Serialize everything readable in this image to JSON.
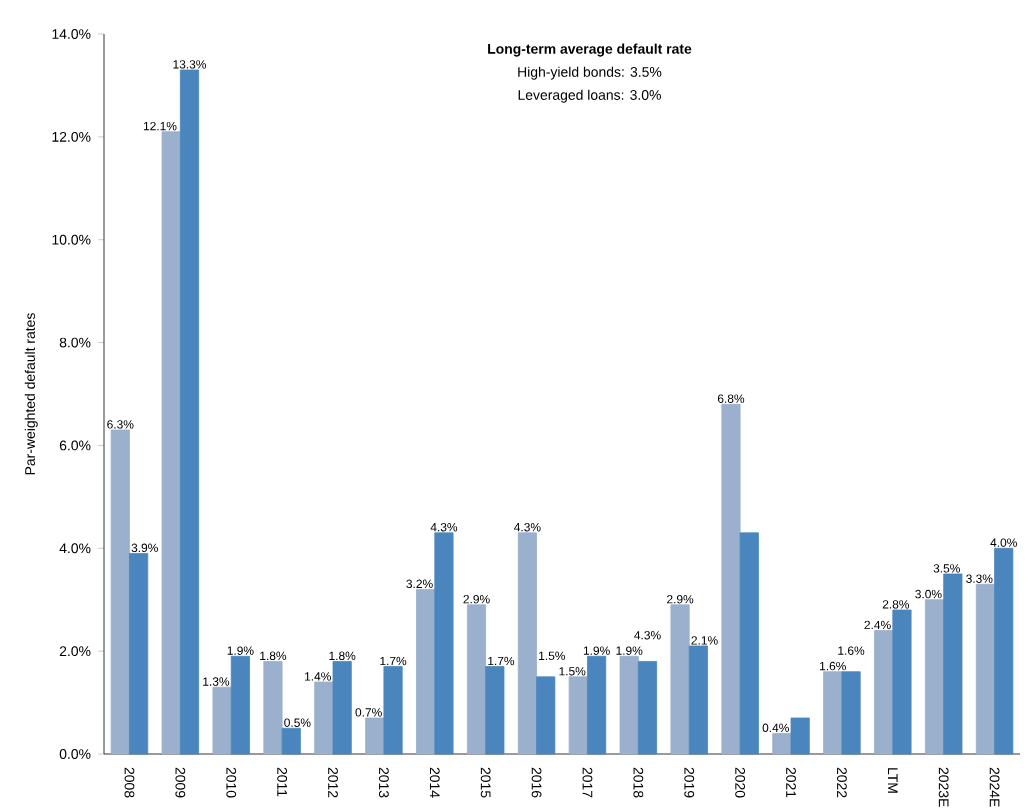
{
  "chart_data": {
    "type": "bar",
    "ylabel": "Par-weighted default rates",
    "categories": [
      "2008",
      "2009",
      "2010",
      "2011",
      "2012",
      "2013",
      "2014",
      "2015",
      "2016",
      "2017",
      "2018",
      "2019",
      "2020",
      "2021",
      "2022",
      "LTM",
      "2023E",
      "2024E"
    ],
    "series": [
      {
        "color": "#9bb0cc",
        "values": [
          6.3,
          12.1,
          1.3,
          1.8,
          1.4,
          0.7,
          3.2,
          2.9,
          4.3,
          1.5,
          1.9,
          2.9,
          6.8,
          0.4,
          1.6,
          2.4,
          3.0,
          3.3
        ],
        "value_labels": [
          "6.3%",
          "12.1%",
          "1.3%",
          "1.8%",
          "1.4%",
          "0.7%",
          "3.2%",
          "2.9%",
          "4.3%",
          "1.5%",
          "1.9%",
          "2.9%",
          "6.8%",
          "0.4%",
          "1.6%",
          "2.4%",
          "3.0%",
          "3.3%"
        ]
      },
      {
        "color": "#4a86bd",
        "values": [
          3.9,
          13.3,
          1.9,
          0.5,
          1.8,
          1.7,
          4.3,
          1.7,
          1.5,
          1.9,
          1.8,
          2.1,
          4.3,
          0.7,
          1.6,
          2.8,
          3.5,
          4.0
        ],
        "value_labels": [
          "3.9%",
          "13.3%",
          "1.9%",
          "0.5%",
          "1.8%",
          "1.7%",
          "4.3%",
          "1.7%",
          "1.5%",
          "1.9%",
          null,
          "2.1%",
          null,
          null,
          "1.6%",
          "2.8%",
          "3.5%",
          "4.0%"
        ]
      }
    ],
    "ylim": [
      0,
      14
    ],
    "yticks": [
      {
        "value": 0,
        "label": "0.0%"
      },
      {
        "value": 2,
        "label": "2.0%"
      },
      {
        "value": 4,
        "label": "4.0%"
      },
      {
        "value": 6,
        "label": "6.0%"
      },
      {
        "value": 8,
        "label": "8.0%"
      },
      {
        "value": 10,
        "label": "10.0%"
      },
      {
        "value": 12,
        "label": "12.0%"
      },
      {
        "value": 14,
        "label": "14.0%"
      }
    ],
    "annotations": [
      "Long-term average default rate",
      "High-yield bonds: 3.5%",
      "Leveraged loans: 3.0%",
      {
        "text": "4.3%",
        "x": "2018",
        "y": 1.8
      }
    ],
    "grid": false
  }
}
